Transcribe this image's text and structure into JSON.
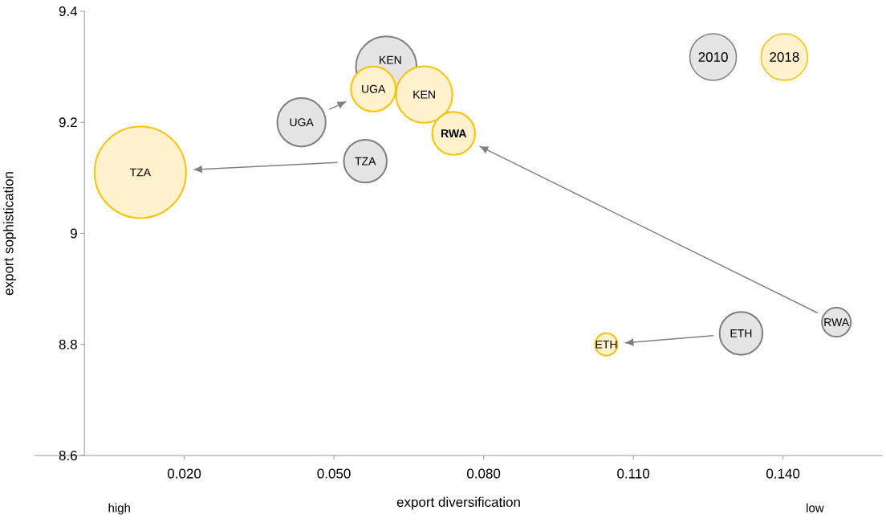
{
  "chart_data": {
    "type": "bubble",
    "xlabel": "export diversification",
    "ylabel": "export sophistication",
    "xlim": [
      -0.01,
      0.16
    ],
    "ylim": [
      8.6,
      9.4
    ],
    "xticks": [
      {
        "value": 0.02,
        "label": "0.020"
      },
      {
        "value": 0.05,
        "label": "0.050"
      },
      {
        "value": 0.08,
        "label": "0.080"
      },
      {
        "value": 0.11,
        "label": "0.110"
      },
      {
        "value": 0.14,
        "label": "0.140"
      }
    ],
    "yticks": [
      8.6,
      8.8,
      9,
      9.2,
      9.4
    ],
    "legend": "top right",
    "series": [
      {
        "name": "2010",
        "color": "#7f7f7f",
        "x": [
          0.0435,
          0.0605,
          0.0563,
          0.1316,
          0.1507
        ],
        "values": [
          9.2,
          9.3,
          9.13,
          8.82,
          8.84
        ],
        "sizes": [
          0.28,
          0.44,
          0.22,
          0.22,
          0.1
        ]
      },
      {
        "name": "2018",
        "color": "#ffc000",
        "x": [
          0.0579,
          0.0681,
          0.0112,
          0.1046,
          0.074
        ],
        "values": [
          9.26,
          9.25,
          9.11,
          8.8,
          9.18
        ],
        "sizes": [
          0.24,
          0.38,
          1,
          0.06,
          0.22
        ]
      }
    ],
    "annotations": [
      {
        "text": "UGA",
        "x": 0.0435,
        "y": 9.2
      },
      {
        "text": "KEN",
        "x": 0.0605,
        "y": 9.3
      },
      {
        "text": "TZA",
        "x": 0.0563,
        "y": 9.13
      },
      {
        "text": "ETH",
        "x": 0.1316,
        "y": 8.82
      },
      {
        "text": "RWA",
        "x": 0.1507,
        "y": 8.84
      },
      {
        "text": "UGA",
        "x": 0.0579,
        "y": 9.26
      },
      {
        "text": "KEN",
        "x": 0.0681,
        "y": 9.25
      },
      {
        "text": "TZA",
        "x": 0.0112,
        "y": 9.11
      },
      {
        "text": "ETH",
        "x": 0.1046,
        "y": 8.8
      },
      {
        "text": "**RWA**",
        "x": 0.074,
        "y": 9.18
      },
      "high",
      "low"
    ]
  }
}
